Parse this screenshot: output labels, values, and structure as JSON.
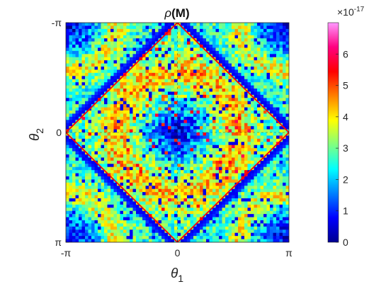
{
  "chart_data": {
    "type": "heatmap",
    "title_rho": "ρ",
    "title_arg": "(M)",
    "xlabel": "θ",
    "xlabel_sub": "1",
    "ylabel": "θ",
    "ylabel_sub": "2",
    "xlim": [
      -3.14159,
      3.14159
    ],
    "ylim": [
      -3.14159,
      3.14159
    ],
    "x_ticks": [
      {
        "value": -3.14159,
        "label": "-π"
      },
      {
        "value": 0,
        "label": "0"
      },
      {
        "value": 3.14159,
        "label": "π"
      }
    ],
    "y_ticks": [
      {
        "value": 3.14159,
        "label": "-π"
      },
      {
        "value": 0,
        "label": "0"
      },
      {
        "value": -3.14159,
        "label": "π"
      }
    ],
    "colorbar": {
      "min": 0,
      "max": 7,
      "exponent_label": "×10",
      "exponent_power": "-17",
      "ticks": [
        "0",
        "1",
        "2",
        "3",
        "4",
        "5",
        "6"
      ],
      "colormap": [
        "#00008f",
        "#0000ff",
        "#0080ff",
        "#00ffff",
        "#80ff80",
        "#ffff00",
        "#ff8000",
        "#ff0000",
        "#ff0080",
        "#ff99ff"
      ]
    },
    "overlay": {
      "shape": "diamond",
      "vertices": [
        [
          0,
          3.14159
        ],
        [
          3.14159,
          0
        ],
        [
          0,
          -3.14159
        ],
        [
          -3.14159,
          0
        ]
      ],
      "color": "#ff0000"
    },
    "grid": false
  }
}
